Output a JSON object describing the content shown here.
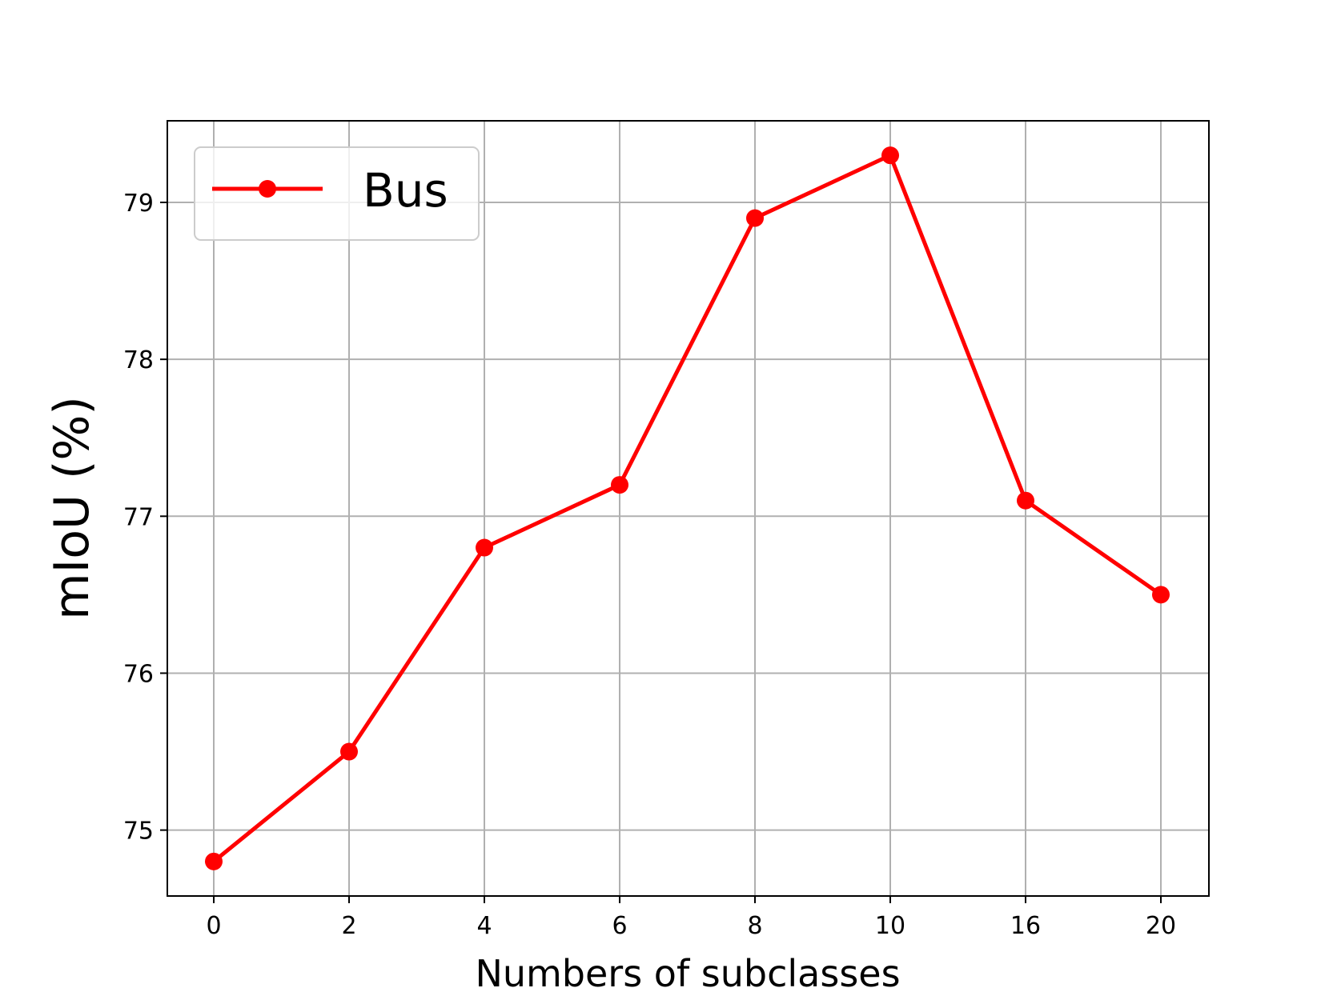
{
  "chart_data": {
    "type": "line",
    "categories": [
      "0",
      "2",
      "4",
      "6",
      "8",
      "10",
      "16",
      "20"
    ],
    "series": [
      {
        "name": "Bus",
        "color": "#ff0000",
        "marker": "circle",
        "values": [
          74.8,
          75.5,
          76.8,
          77.2,
          78.9,
          79.3,
          77.1,
          76.5
        ]
      }
    ],
    "xlabel": "Numbers of subclasses",
    "ylabel": "mIoU (%)",
    "ylim": [
      74.58,
      79.52
    ],
    "yticks": [
      "75",
      "76",
      "77",
      "78",
      "79"
    ],
    "grid": true,
    "legend_position": "top-left"
  }
}
